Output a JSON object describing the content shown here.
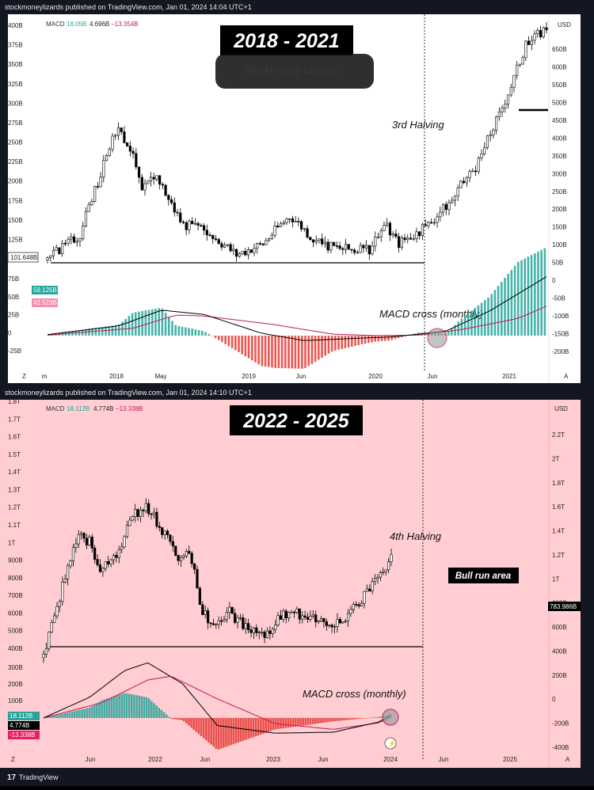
{
  "panels": [
    {
      "header": "stockmoneylizards published on TradingView.com, Jan 01, 2024 14:04 UTC+1",
      "title": "2018 - 2021",
      "watermark": "Stockmoney Lizards",
      "macd_legend": {
        "name": "MACD",
        "v1": "18.05B",
        "v2": "4.696B",
        "v3": "−13.354B"
      },
      "colors": {
        "bg": "#ffffff",
        "macd_line": "#000000",
        "signal_line": "#c2185b",
        "hist_pos": "#26a69a",
        "hist_neg": "#e53935"
      },
      "left_axis": [
        "400B",
        "375B",
        "350B",
        "325B",
        "300B",
        "275B",
        "250B",
        "225B",
        "200B",
        "175B",
        "150B",
        "125B",
        "100B"
      ],
      "left_axis_macd": [
        "75B",
        "50B",
        "25B",
        "0",
        "-25B"
      ],
      "right_axis": [
        "650B",
        "600B",
        "550B",
        "500B",
        "450B",
        "400B",
        "350B",
        "300B",
        "250B",
        "200B",
        "150B",
        "100B",
        "50B",
        "0",
        "-50B",
        "-100B",
        "-150B",
        "-200B"
      ],
      "currency": "USD",
      "support_label": "101.648B",
      "macd_badges": [
        "59.125B",
        "42.523B"
      ],
      "x_labels": [
        "m",
        "2018",
        "May",
        "2019",
        "Jun",
        "2020",
        "Jun",
        "2021"
      ],
      "corner_left": "Z",
      "corner_right": "A",
      "annotations": {
        "halving": "3rd Halving",
        "macd_cross": "MACD cross (monthly)"
      },
      "chart_data": {
        "type": "candlestick",
        "title": "2018 - 2021",
        "unit": "USD (total market cap, B)",
        "price_approx": [
          [
            0,
            95
          ],
          [
            5,
            120
          ],
          [
            8,
            200
          ],
          [
            10,
            290
          ],
          [
            12,
            260
          ],
          [
            14,
            170
          ],
          [
            16,
            200
          ],
          [
            18,
            160
          ],
          [
            20,
            130
          ],
          [
            24,
            120
          ],
          [
            28,
            100
          ],
          [
            32,
            110
          ],
          [
            36,
            140
          ],
          [
            40,
            110
          ],
          [
            44,
            105
          ],
          [
            48,
            103
          ],
          [
            50,
            130
          ],
          [
            52,
            110
          ],
          [
            56,
            125
          ],
          [
            60,
            160
          ],
          [
            64,
            220
          ],
          [
            67,
            330
          ],
          [
            69,
            440
          ],
          [
            71,
            600
          ],
          [
            74,
            700
          ]
        ],
        "support_level": 101.648,
        "macd_line_approx": [
          [
            0,
            2
          ],
          [
            10,
            20
          ],
          [
            16,
            52
          ],
          [
            22,
            43
          ],
          [
            30,
            5
          ],
          [
            36,
            -10
          ],
          [
            44,
            -5
          ],
          [
            48,
            -3
          ],
          [
            52,
            3
          ],
          [
            56,
            10
          ],
          [
            62,
            50
          ],
          [
            70,
            120
          ]
        ],
        "signal_line_approx": [
          [
            0,
            1
          ],
          [
            12,
            15
          ],
          [
            18,
            42
          ],
          [
            22,
            40
          ],
          [
            32,
            22
          ],
          [
            40,
            3
          ],
          [
            46,
            0
          ],
          [
            52,
            1
          ],
          [
            58,
            12
          ],
          [
            66,
            35
          ],
          [
            70,
            60
          ]
        ]
      }
    },
    {
      "header": "stockmoneylizards published on TradingView.com, Jan 01, 2024 14:10 UTC+1",
      "title": "2022 - 2025",
      "macd_legend": {
        "name": "MACD",
        "v1": "18.112B",
        "v2": "4.774B",
        "v3": "−13.338B"
      },
      "colors": {
        "bg": "#ffcdd2",
        "macd_line": "#000000",
        "signal_line": "#c2185b",
        "hist_pos": "#26a69a",
        "hist_neg": "#e53935"
      },
      "left_axis": [
        "1.8T",
        "1.7T",
        "1.6T",
        "1.5T",
        "1.4T",
        "1.3T",
        "1.2T",
        "1.1T",
        "1T",
        "900B",
        "800B",
        "700B",
        "600B",
        "500B",
        "400B"
      ],
      "left_axis_macd": [
        "300B",
        "200B",
        "100B"
      ],
      "right_axis": [
        "2.2T",
        "2T",
        "1.8T",
        "1.6T",
        "1.4T",
        "1.2T",
        "1T",
        "800B",
        "600B",
        "400B",
        "200B",
        "0",
        "-200B",
        "-400B"
      ],
      "currency": "USD",
      "price_label": "783.986B",
      "macd_badges": [
        "18.112B",
        "4.774B",
        "-13.338B"
      ],
      "x_labels": [
        "Jun",
        "2022",
        "Jun",
        "2023",
        "Jun",
        "2024",
        "Jun",
        "2025"
      ],
      "corner_left": "Z",
      "corner_right": "A",
      "annotations": {
        "halving": "4th Halving",
        "bull_run": "Bull run area",
        "macd_cross": "MACD cross (monthly)"
      },
      "footer": "TradingView",
      "chart_data": {
        "type": "candlestick",
        "title": "2022 - 2025",
        "unit": "USD (total market cap)",
        "price_approx": [
          [
            0,
            360
          ],
          [
            3,
            600
          ],
          [
            6,
            950
          ],
          [
            8,
            900
          ],
          [
            10,
            700
          ],
          [
            13,
            850
          ],
          [
            15,
            1050
          ],
          [
            17,
            1200
          ],
          [
            19,
            1100
          ],
          [
            21,
            950
          ],
          [
            23,
            800
          ],
          [
            25,
            850
          ],
          [
            27,
            550
          ],
          [
            29,
            450
          ],
          [
            32,
            520
          ],
          [
            35,
            450
          ],
          [
            38,
            420
          ],
          [
            41,
            500
          ],
          [
            45,
            510
          ],
          [
            49,
            480
          ],
          [
            52,
            470
          ],
          [
            55,
            580
          ],
          [
            58,
            700
          ],
          [
            60,
            784
          ]
        ],
        "support_level": 420,
        "macd_line_approx": [
          [
            0,
            0
          ],
          [
            8,
            110
          ],
          [
            14,
            250
          ],
          [
            18,
            290
          ],
          [
            24,
            180
          ],
          [
            30,
            -40
          ],
          [
            40,
            -80
          ],
          [
            50,
            -75
          ],
          [
            58,
            -20
          ],
          [
            60,
            18
          ]
        ],
        "signal_line_approx": [
          [
            0,
            0
          ],
          [
            10,
            80
          ],
          [
            18,
            200
          ],
          [
            22,
            220
          ],
          [
            30,
            100
          ],
          [
            40,
            -30
          ],
          [
            50,
            -60
          ],
          [
            58,
            -25
          ],
          [
            60,
            5
          ]
        ]
      }
    }
  ]
}
